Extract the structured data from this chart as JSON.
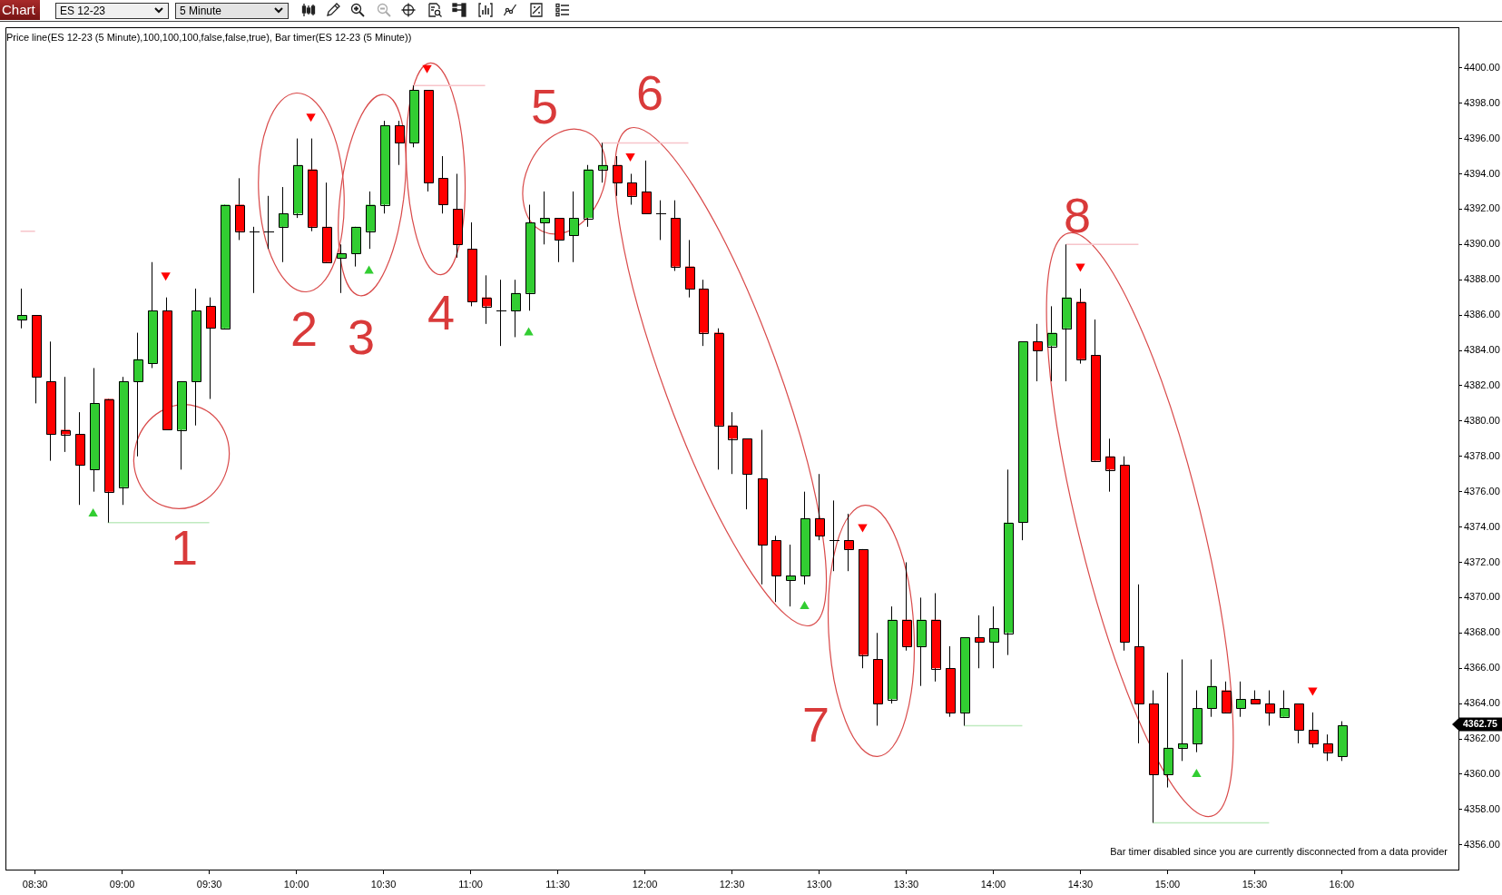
{
  "chart_data": {
    "type": "candlestick",
    "title": "ES 12-23",
    "subtitle": "5 Minute",
    "x": [
      8.4167,
      8.5,
      8.5833,
      8.6667,
      8.75,
      8.8333,
      8.9167,
      9,
      9.0833,
      9.1667,
      9.25,
      9.3333,
      9.4167,
      9.5,
      9.5833,
      9.6667,
      9.75,
      9.8333,
      9.9167,
      10,
      10.0833,
      10.1667,
      10.25,
      10.3333,
      10.4167,
      10.5,
      10.5833,
      10.6667,
      10.75,
      10.8333,
      10.9167,
      11,
      11.0833,
      11.1667,
      11.25,
      11.3333,
      11.4167,
      11.5,
      11.5833,
      11.6667,
      11.75,
      11.8333,
      11.9167,
      12,
      12.0833,
      12.1667,
      12.25,
      12.3333,
      12.4167,
      12.5,
      12.5833,
      12.6667,
      12.75,
      12.8333,
      12.9167,
      13,
      13.0833,
      13.1667,
      13.25,
      13.3333,
      13.4167,
      13.5,
      13.5833,
      13.6667,
      13.75,
      13.8333,
      13.9167,
      14,
      14.0833,
      14.1667,
      14.25,
      14.3333,
      14.4167,
      14.5,
      14.5833,
      14.6667,
      14.75,
      14.8333,
      14.9167,
      15,
      15.0833,
      15.1667,
      15.25,
      15.3333,
      15.4167,
      15.5,
      15.5833,
      15.6667,
      15.75,
      15.8333,
      15.9167,
      16
    ],
    "xlim": [
      8.33,
      16.67
    ],
    "xticks": [
      {
        "value": 8.5,
        "label": "08:30"
      },
      {
        "value": 9,
        "label": "09:00"
      },
      {
        "value": 9.5,
        "label": "09:30"
      },
      {
        "value": 10,
        "label": "10:00"
      },
      {
        "value": 10.5,
        "label": "10:30"
      },
      {
        "value": 11,
        "label": "11:00"
      },
      {
        "value": 11.5,
        "label": "11:30"
      },
      {
        "value": 12,
        "label": "12:00"
      },
      {
        "value": 12.5,
        "label": "12:30"
      },
      {
        "value": 13,
        "label": "13:00"
      },
      {
        "value": 13.5,
        "label": "13:30"
      },
      {
        "value": 14,
        "label": "14:00"
      },
      {
        "value": 14.5,
        "label": "14:30"
      },
      {
        "value": 15,
        "label": "15:00"
      },
      {
        "value": 15.5,
        "label": "15:30"
      },
      {
        "value": 16,
        "label": "16:00"
      }
    ],
    "ohlc": [
      [
        4385.75,
        4387.5,
        4385.25,
        4386.0
      ],
      [
        4386.0,
        4386.0,
        4381.0,
        4382.5
      ],
      [
        4382.25,
        4384.5,
        4377.75,
        4379.25
      ],
      [
        4379.5,
        4382.5,
        4378.25,
        4379.25
      ],
      [
        4379.25,
        4380.5,
        4375.25,
        4377.5
      ],
      [
        4377.25,
        4383.0,
        4376.0,
        4381.0
      ],
      [
        4381.25,
        4381.25,
        4374.25,
        4376.0
      ],
      [
        4376.25,
        4382.5,
        4375.25,
        4382.25
      ],
      [
        4382.25,
        4385.0,
        4378.0,
        4383.5
      ],
      [
        4383.25,
        4389.0,
        4383.0,
        4386.25
      ],
      [
        4386.25,
        4387.0,
        4379.5,
        4379.5
      ],
      [
        4379.5,
        4382.25,
        4377.25,
        4382.25
      ],
      [
        4382.25,
        4387.5,
        4379.75,
        4386.25
      ],
      [
        4386.5,
        4387.0,
        4381.25,
        4385.25
      ],
      [
        4385.25,
        4392.25,
        4385.25,
        4392.25
      ],
      [
        4392.25,
        4393.75,
        4390.25,
        4390.75
      ],
      [
        4390.75,
        4391.0,
        4387.25,
        4390.75
      ],
      [
        4390.75,
        4392.75,
        4389.75,
        4390.75
      ],
      [
        4391.0,
        4393.25,
        4389.0,
        4391.75
      ],
      [
        4391.75,
        4396.0,
        4391.5,
        4394.5
      ],
      [
        4394.25,
        4396.0,
        4390.75,
        4391.0
      ],
      [
        4391.0,
        4393.5,
        4389.0,
        4389.0
      ],
      [
        4389.25,
        4390.0,
        4387.25,
        4389.5
      ],
      [
        4389.5,
        4391.0,
        4388.75,
        4391.0
      ],
      [
        4390.75,
        4393.0,
        4389.75,
        4392.25
      ],
      [
        4392.25,
        4397.0,
        4391.75,
        4396.75
      ],
      [
        4396.75,
        4397.0,
        4394.5,
        4395.75
      ],
      [
        4395.75,
        4399.0,
        4395.5,
        4398.75
      ],
      [
        4398.75,
        4398.75,
        4393.0,
        4393.5
      ],
      [
        4393.75,
        4395.0,
        4391.75,
        4392.25
      ],
      [
        4392.0,
        4394.0,
        4389.25,
        4390.0
      ],
      [
        4389.75,
        4391.25,
        4386.5,
        4386.75
      ],
      [
        4387.0,
        4388.25,
        4385.5,
        4386.5
      ],
      [
        4386.25,
        4388.0,
        4384.25,
        4386.25
      ],
      [
        4386.25,
        4388.0,
        4384.75,
        4387.25
      ],
      [
        4387.25,
        4392.25,
        4386.25,
        4391.25
      ],
      [
        4391.25,
        4393.0,
        4390.0,
        4391.5
      ],
      [
        4391.5,
        4391.5,
        4389.0,
        4390.25
      ],
      [
        4390.5,
        4393.0,
        4389.0,
        4391.5
      ],
      [
        4391.5,
        4394.5,
        4391.0,
        4394.25
      ],
      [
        4394.25,
        4395.75,
        4393.5,
        4394.5
      ],
      [
        4394.5,
        4395.0,
        4392.75,
        4393.5
      ],
      [
        4393.5,
        4394.0,
        4392.25,
        4392.75
      ],
      [
        4393.0,
        4394.75,
        4391.75,
        4391.75
      ],
      [
        4391.75,
        4392.5,
        4390.25,
        4391.75
      ],
      [
        4391.5,
        4392.5,
        4388.5,
        4388.75
      ],
      [
        4388.75,
        4390.25,
        4387.0,
        4387.5
      ],
      [
        4387.5,
        4388.0,
        4384.25,
        4385.0
      ],
      [
        4385.0,
        4385.25,
        4377.25,
        4379.75
      ],
      [
        4379.75,
        4380.5,
        4377.0,
        4379.0
      ],
      [
        4379.0,
        4379.0,
        4375.0,
        4377.0
      ],
      [
        4376.75,
        4379.5,
        4370.75,
        4373.0
      ],
      [
        4373.25,
        4373.5,
        4369.75,
        4371.25
      ],
      [
        4371.0,
        4373.0,
        4369.5,
        4371.25
      ],
      [
        4371.25,
        4376.0,
        4370.75,
        4374.5
      ],
      [
        4374.5,
        4377.0,
        4373.25,
        4373.5
      ],
      [
        4373.25,
        4375.5,
        4371.5,
        4373.25
      ],
      [
        4373.25,
        4374.75,
        4371.5,
        4372.75
      ],
      [
        4372.75,
        4372.75,
        4366.0,
        4366.75
      ],
      [
        4366.5,
        4368.0,
        4362.75,
        4364.0
      ],
      [
        4364.25,
        4369.5,
        4364.0,
        4368.75
      ],
      [
        4368.75,
        4372.0,
        4367.0,
        4367.25
      ],
      [
        4367.25,
        4370.0,
        4365.0,
        4368.75
      ],
      [
        4368.75,
        4370.25,
        4365.25,
        4366.0
      ],
      [
        4366.0,
        4367.25,
        4363.25,
        4363.5
      ],
      [
        4363.5,
        4367.75,
        4362.75,
        4367.75
      ],
      [
        4367.75,
        4369.0,
        4366.0,
        4367.5
      ],
      [
        4367.5,
        4369.5,
        4366.0,
        4368.25
      ],
      [
        4368.0,
        4377.25,
        4366.75,
        4374.25
      ],
      [
        4374.25,
        4384.5,
        4373.25,
        4384.5
      ],
      [
        4384.5,
        4385.5,
        4382.25,
        4384.0
      ],
      [
        4384.25,
        4386.5,
        4382.25,
        4385.0
      ],
      [
        4385.25,
        4390.0,
        4382.25,
        4387.0
      ],
      [
        4386.75,
        4387.5,
        4383.25,
        4383.5
      ],
      [
        4383.75,
        4385.75,
        4377.75,
        4377.75
      ],
      [
        4378.0,
        4379.0,
        4376.0,
        4377.25
      ],
      [
        4377.5,
        4378.0,
        4367.0,
        4367.5
      ],
      [
        4367.25,
        4370.75,
        4361.75,
        4364.0
      ],
      [
        4364.0,
        4364.75,
        4357.25,
        4360.0
      ],
      [
        4360.0,
        4365.75,
        4359.25,
        4361.5
      ],
      [
        4361.5,
        4366.5,
        4360.75,
        4361.75
      ],
      [
        4361.75,
        4364.75,
        4361.25,
        4363.75
      ],
      [
        4363.75,
        4366.5,
        4363.25,
        4365.0
      ],
      [
        4364.75,
        4365.25,
        4363.5,
        4363.5
      ],
      [
        4363.75,
        4365.25,
        4363.25,
        4364.25
      ],
      [
        4364.25,
        4364.75,
        4364.0,
        4364.0
      ],
      [
        4364.0,
        4364.75,
        4362.75,
        4363.5
      ],
      [
        4363.25,
        4364.75,
        4363.25,
        4363.75
      ],
      [
        4364.0,
        4364.0,
        4361.75,
        4362.5
      ],
      [
        4362.5,
        4363.5,
        4361.5,
        4361.75
      ],
      [
        4361.75,
        4362.25,
        4360.75,
        4361.25
      ],
      [
        4361.0,
        4363.0,
        4360.75,
        4362.75
      ]
    ],
    "colors": [
      "#32cd32",
      "#ff0000",
      "#ff0000",
      "#ff0000",
      "#ff0000",
      "#32cd32",
      "#ff0000",
      "#32cd32",
      "#32cd32",
      "#32cd32",
      "#ff0000",
      "#32cd32",
      "#32cd32",
      "#ff0000",
      "#32cd32",
      "#ff0000",
      "#000000",
      "#000000",
      "#32cd32",
      "#32cd32",
      "#ff0000",
      "#ff0000",
      "#32cd32",
      "#32cd32",
      "#32cd32",
      "#32cd32",
      "#ff0000",
      "#32cd32",
      "#ff0000",
      "#ff0000",
      "#ff0000",
      "#ff0000",
      "#ff0000",
      "#000000",
      "#32cd32",
      "#32cd32",
      "#32cd32",
      "#ff0000",
      "#32cd32",
      "#32cd32",
      "#32cd32",
      "#ff0000",
      "#ff0000",
      "#ff0000",
      "#000000",
      "#ff0000",
      "#ff0000",
      "#ff0000",
      "#ff0000",
      "#ff0000",
      "#ff0000",
      "#ff0000",
      "#ff0000",
      "#32cd32",
      "#32cd32",
      "#ff0000",
      "#000000",
      "#ff0000",
      "#ff0000",
      "#ff0000",
      "#32cd32",
      "#ff0000",
      "#32cd32",
      "#ff0000",
      "#ff0000",
      "#32cd32",
      "#ff0000",
      "#32cd32",
      "#32cd32",
      "#32cd32",
      "#ff0000",
      "#32cd32",
      "#32cd32",
      "#ff0000",
      "#ff0000",
      "#ff0000",
      "#ff0000",
      "#ff0000",
      "#ff0000",
      "#32cd32",
      "#32cd32",
      "#32cd32",
      "#32cd32",
      "#ff0000",
      "#32cd32",
      "#ff0000",
      "#ff0000",
      "#32cd32",
      "#ff0000",
      "#ff0000",
      "#ff0000",
      "#32cd32"
    ],
    "series": [
      {
        "type": "scatter",
        "color": "#ff0000",
        "marker": "triangle",
        "values": [
          null,
          null,
          null,
          null,
          null,
          null,
          null,
          null,
          null,
          null,
          4388.25,
          null,
          null,
          null,
          null,
          null,
          null,
          null,
          null,
          null,
          4397.25,
          null,
          null,
          null,
          null,
          null,
          null,
          null,
          4400.0,
          null,
          null,
          null,
          null,
          null,
          null,
          null,
          null,
          null,
          null,
          null,
          null,
          null,
          4395.0,
          null,
          null,
          null,
          null,
          null,
          null,
          null,
          null,
          null,
          null,
          null,
          null,
          null,
          null,
          null,
          4374.0,
          null,
          null,
          null,
          null,
          null,
          null,
          null,
          null,
          null,
          null,
          null,
          null,
          null,
          null,
          4388.75,
          null,
          null,
          null,
          null,
          null,
          null,
          null,
          null,
          null,
          null,
          null,
          null,
          null,
          null,
          null,
          4364.75,
          null,
          null
        ]
      },
      {
        "type": "scatter",
        "color": "#32cd32",
        "marker": "triangle",
        "values": [
          null,
          null,
          null,
          null,
          null,
          4374.75,
          null,
          null,
          null,
          null,
          null,
          null,
          null,
          null,
          null,
          null,
          null,
          null,
          null,
          null,
          null,
          null,
          null,
          null,
          4388.5,
          null,
          null,
          null,
          null,
          null,
          null,
          null,
          null,
          null,
          null,
          4385.0,
          null,
          null,
          null,
          null,
          null,
          null,
          null,
          null,
          null,
          null,
          null,
          null,
          null,
          null,
          null,
          null,
          null,
          null,
          4369.5,
          null,
          null,
          null,
          null,
          null,
          null,
          null,
          null,
          null,
          null,
          null,
          null,
          null,
          null,
          null,
          null,
          null,
          null,
          null,
          null,
          null,
          null,
          null,
          null,
          null,
          null,
          4360.0,
          null,
          null,
          null,
          null,
          null,
          null,
          null,
          null,
          null,
          null
        ]
      },
      {
        "type": "line",
        "color": "#f7c4ca",
        "values": [
          4390.75,
          4390.75,
          null,
          null,
          null,
          null,
          null,
          null,
          null,
          null,
          null,
          null,
          null,
          null,
          null,
          null,
          null,
          null,
          null,
          null,
          null,
          null,
          null,
          null,
          null,
          null,
          null,
          4399.0,
          4399.0,
          4399.0,
          4399.0,
          4399.0,
          4399.0,
          null,
          null,
          null,
          null,
          null,
          null,
          null,
          4395.75,
          4395.75,
          4395.75,
          4395.75,
          4395.75,
          4395.75,
          4395.75,
          null,
          null,
          null,
          null,
          null,
          null,
          null,
          null,
          null,
          null,
          null,
          null,
          null,
          null,
          null,
          null,
          null,
          null,
          null,
          null,
          null,
          null,
          null,
          null,
          null,
          4390.0,
          4390.0,
          4390.0,
          4390.0,
          4390.0,
          4390.0,
          null,
          null,
          null,
          null,
          null,
          null,
          null,
          null,
          null,
          null,
          null,
          null,
          null,
          null
        ]
      },
      {
        "type": "line",
        "color": "#bfeabf",
        "values": [
          null,
          null,
          null,
          null,
          null,
          null,
          4374.25,
          4374.25,
          4374.25,
          4374.25,
          4374.25,
          4374.25,
          4374.25,
          4374.25,
          null,
          null,
          null,
          null,
          null,
          null,
          null,
          null,
          null,
          null,
          null,
          null,
          null,
          null,
          null,
          null,
          null,
          null,
          null,
          null,
          null,
          null,
          null,
          null,
          null,
          null,
          null,
          null,
          null,
          null,
          null,
          null,
          null,
          null,
          null,
          null,
          null,
          null,
          null,
          null,
          null,
          null,
          null,
          null,
          null,
          null,
          null,
          null,
          null,
          null,
          null,
          4362.75,
          4362.75,
          4362.75,
          4362.75,
          4362.75,
          null,
          null,
          null,
          null,
          null,
          null,
          null,
          null,
          4357.25,
          4357.25,
          4357.25,
          4357.25,
          4357.25,
          4357.25,
          4357.25,
          4357.25,
          4357.25,
          null,
          null,
          null,
          null,
          null
        ]
      }
    ],
    "ylim": [
      4354.6,
      4402.3
    ],
    "yticks": [
      {
        "value": 4356,
        "label": "4356.00"
      },
      {
        "value": 4358,
        "label": "4358.00"
      },
      {
        "value": 4360,
        "label": "4360.00"
      },
      {
        "value": 4362,
        "label": "4362.00"
      },
      {
        "value": 4364,
        "label": "4364.00"
      },
      {
        "value": 4366,
        "label": "4366.00"
      },
      {
        "value": 4368,
        "label": "4368.00"
      },
      {
        "value": 4370,
        "label": "4370.00"
      },
      {
        "value": 4372,
        "label": "4372.00"
      },
      {
        "value": 4374,
        "label": "4374.00"
      },
      {
        "value": 4376,
        "label": "4376.00"
      },
      {
        "value": 4378,
        "label": "4378.00"
      },
      {
        "value": 4380,
        "label": "4380.00"
      },
      {
        "value": 4382,
        "label": "4382.00"
      },
      {
        "value": 4384,
        "label": "4384.00"
      },
      {
        "value": 4386,
        "label": "4386.00"
      },
      {
        "value": 4388,
        "label": "4388.00"
      },
      {
        "value": 4390,
        "label": "4390.00"
      },
      {
        "value": 4392,
        "label": "4392.00"
      },
      {
        "value": 4394,
        "label": "4394.00"
      },
      {
        "value": 4396,
        "label": "4396.00"
      },
      {
        "value": 4398,
        "label": "4398.00"
      },
      {
        "value": 4400,
        "label": "4400.00"
      }
    ],
    "annotations": [
      "Chart",
      "Price line(ES 12-23 (5 Minute),100,100,100,false,false,true), Bar timer(ES 12-23 (5 Minute))",
      "1",
      "2",
      "3",
      "4",
      "5",
      "6",
      "7",
      "8",
      "Bar timer disabled since you are currently disconnected from a data provider",
      "4362.75"
    ]
  }
}
